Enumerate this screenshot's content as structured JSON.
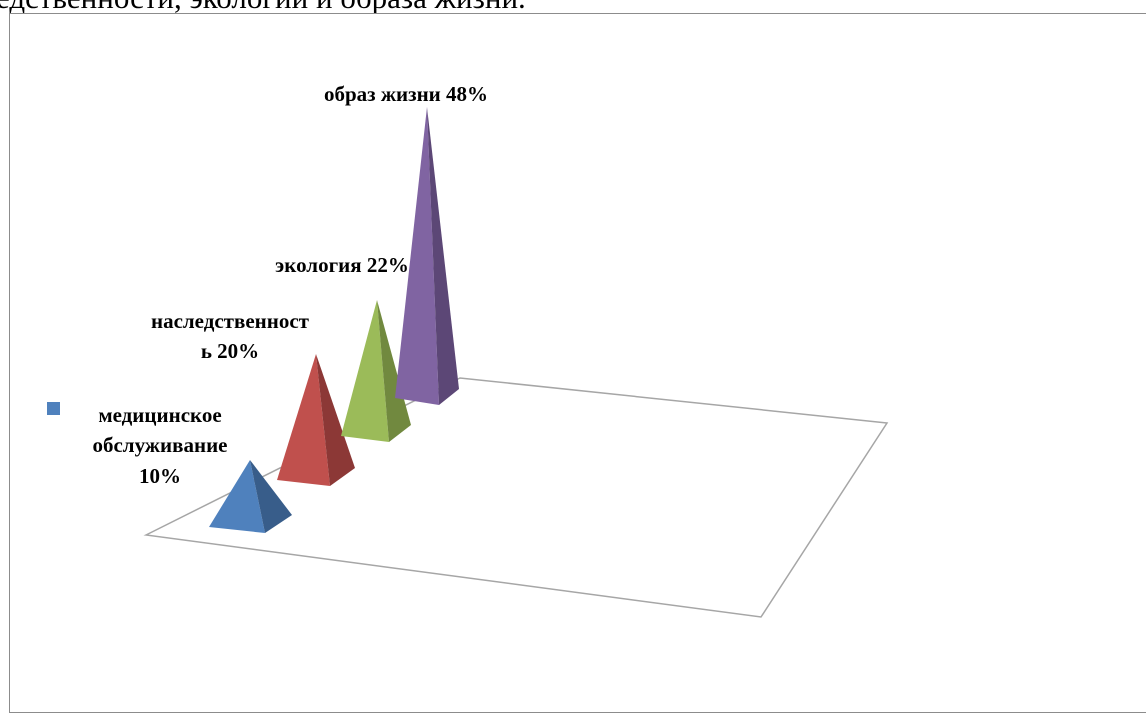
{
  "document": {
    "caption_fragment": "едственности, экологии и образа жизни."
  },
  "chart_data": {
    "type": "bar",
    "subtype": "3d-pyramid",
    "title": "",
    "xlabel": "",
    "ylabel": "",
    "categories": [
      "медицинское обслуживание",
      "наследственность",
      "экология",
      "образ жизни"
    ],
    "values": [
      10,
      20,
      22,
      48
    ],
    "unit": "%",
    "data_labels": [
      [
        "медицинское",
        "обслуживание",
        "10%"
      ],
      [
        "наследственност",
        "ь 20%"
      ],
      [
        "экология 22%"
      ],
      [
        "образ жизни 48%"
      ]
    ],
    "legend": {
      "visible": true,
      "entries": [
        "медицинское обслуживание"
      ],
      "position": "left"
    },
    "grid": false,
    "colors": [
      "#4f81bd",
      "#c0504d",
      "#9bbb59",
      "#8064a2"
    ],
    "colors_dark": [
      "#385d8a",
      "#8c3836",
      "#71893f",
      "#5c4776"
    ]
  }
}
